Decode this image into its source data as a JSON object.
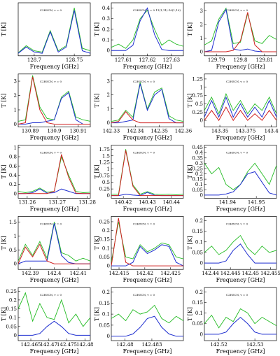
{
  "chart_data": [
    {
      "type": "line",
      "xlabel": "Frequency [GHz]",
      "ylabel": "T [K]",
      "annotation": "C2H5CN, v = 0",
      "xlim": [
        128.68,
        128.77
      ],
      "xticks": [
        128.7,
        128.75
      ],
      "ylim": [
        -0.1,
        2.0
      ],
      "x": [
        128.68,
        128.69,
        128.7,
        128.71,
        128.72,
        128.73,
        128.74,
        128.75,
        128.76,
        128.77
      ],
      "series": [
        {
          "color": "#22bb22",
          "values": [
            0.02,
            0.3,
            0.1,
            0.05,
            0.9,
            0.1,
            0.3,
            1.8,
            0.2,
            0.1
          ]
        },
        {
          "color": "#1f2fd0",
          "values": [
            0,
            0.25,
            0.05,
            0,
            0.85,
            0.05,
            0.25,
            1.7,
            0.1,
            0
          ]
        }
      ]
    },
    {
      "type": "line",
      "xlabel": "Frequency [GHz]",
      "ylabel": "T [K]",
      "annotation": "C2H5CN, v = 0 11(1,11)-10(1,10)",
      "xlim": [
        127.605,
        127.635
      ],
      "xticks": [
        127.61,
        127.62,
        127.63
      ],
      "ylim": [
        -0.05,
        0.45
      ],
      "yticks": [
        0,
        0.1,
        0.2,
        0.3,
        0.4
      ],
      "x": [
        127.605,
        127.608,
        127.611,
        127.614,
        127.617,
        127.62,
        127.623,
        127.626,
        127.629,
        127.632,
        127.635
      ],
      "series": [
        {
          "color": "#22bb22",
          "values": [
            0.03,
            0.06,
            0.02,
            0.1,
            0.3,
            0.38,
            0.2,
            0.05,
            0.1,
            0.06,
            0.04
          ]
        },
        {
          "color": "#1f2fd0",
          "values": [
            0,
            0,
            0,
            0.05,
            0.28,
            0.4,
            0.15,
            0.01,
            0,
            0,
            0
          ]
        }
      ]
    },
    {
      "type": "line",
      "xlabel": "Frequency [GHz]",
      "ylabel": "T [K]",
      "annotation": "C2H5CN, v = 0",
      "xlim": [
        129.785,
        129.815
      ],
      "xticks": [
        129.79,
        129.8,
        129.81
      ],
      "ylim": [
        -0.3,
        3.6
      ],
      "yticks": [
        0,
        1,
        2,
        3
      ],
      "x": [
        129.785,
        129.788,
        129.791,
        129.794,
        129.797,
        129.8,
        129.803,
        129.806,
        129.809,
        129.812,
        129.815
      ],
      "series": [
        {
          "color": "#22bb22",
          "values": [
            0.5,
            0.8,
            2.4,
            3.2,
            0.6,
            0.7,
            2.8,
            0.8,
            0.6,
            1.2,
            0.9
          ]
        },
        {
          "color": "#1f2fd0",
          "values": [
            0,
            0.1,
            2.2,
            3.1,
            0.2,
            0.1,
            0.2,
            0.05,
            0,
            0,
            0
          ]
        },
        {
          "color": "#d02020",
          "values": [
            0,
            0,
            0,
            0,
            0.1,
            0.8,
            2.9,
            0.5,
            0,
            0,
            0
          ]
        }
      ]
    },
    {
      "type": "line",
      "xlabel": "Frequency [GHz]",
      "ylabel": "T [K]",
      "annotation": "C2H5CN, v = 0",
      "xlim": [
        130.885,
        130.915
      ],
      "xticks": [
        130.89,
        130.9,
        130.91
      ],
      "ylim": [
        -0.2,
        3.5
      ],
      "yticks": [
        0,
        1,
        2,
        3
      ],
      "x": [
        130.885,
        130.888,
        130.891,
        130.894,
        130.897,
        130.9,
        130.903,
        130.906,
        130.909,
        130.912,
        130.915
      ],
      "series": [
        {
          "color": "#22bb22",
          "values": [
            0.2,
            0.3,
            3.4,
            1.2,
            0.4,
            0.3,
            1.9,
            2.3,
            0.5,
            0.3,
            0.2
          ]
        },
        {
          "color": "#1f2fd0",
          "values": [
            0,
            0,
            0.1,
            0.1,
            0.2,
            0.3,
            1.8,
            2.2,
            0.3,
            0,
            0
          ]
        },
        {
          "color": "#d02020",
          "values": [
            0,
            0.1,
            3.3,
            1.0,
            0.1,
            0,
            0,
            0,
            0,
            0,
            0
          ]
        }
      ]
    },
    {
      "type": "line",
      "xlabel": "Frequency [GHz]",
      "ylabel": "T [K]",
      "annotation": "C2H5CN, v = 0",
      "xlim": [
        142.33,
        142.36
      ],
      "xticks": [
        142.33,
        142.34,
        142.35,
        142.36
      ],
      "ylim": [
        -0.3,
        3.5
      ],
      "yticks": [
        0,
        1,
        2,
        3
      ],
      "x": [
        142.33,
        142.333,
        142.336,
        142.339,
        142.342,
        142.345,
        142.348,
        142.351,
        142.354,
        142.357,
        142.36
      ],
      "series": [
        {
          "color": "#22bb22",
          "values": [
            0.1,
            0.2,
            0.9,
            0.4,
            2.9,
            1.0,
            2.2,
            2.5,
            0.5,
            0.2,
            0.1
          ]
        },
        {
          "color": "#1f2fd0",
          "values": [
            0,
            0,
            0.1,
            0.2,
            2.8,
            0.9,
            2.0,
            2.4,
            0.3,
            0,
            0
          ]
        },
        {
          "color": "#d02020",
          "values": [
            0,
            0.1,
            0.8,
            0.2,
            0,
            0,
            0,
            0,
            0,
            0,
            0
          ]
        }
      ]
    },
    {
      "type": "line",
      "xlabel": "Frequency [GHz]",
      "ylabel": "T [K]",
      "annotation": "C2H5CN, v = 0",
      "xlim": [
        143.335,
        143.405
      ],
      "xticks": [
        143.35,
        143.375,
        143.4
      ],
      "ylim": [
        -0.2,
        1.4
      ],
      "yticks": [
        0,
        0.25,
        0.5,
        0.75,
        1,
        1.25
      ],
      "x": [
        143.335,
        143.342,
        143.349,
        143.356,
        143.363,
        143.37,
        143.377,
        143.384,
        143.391,
        143.398,
        143.405
      ],
      "series": [
        {
          "color": "#22bb22",
          "values": [
            0.3,
            0.7,
            0.2,
            0.8,
            0.3,
            0.6,
            0.2,
            0.5,
            0.3,
            0.7,
            0.2
          ]
        },
        {
          "color": "#1f2fd0",
          "values": [
            0.1,
            0.6,
            0.1,
            0.7,
            0.1,
            0.5,
            0.1,
            0.4,
            0.1,
            0.6,
            0.1
          ]
        },
        {
          "color": "#d02020",
          "values": [
            0,
            0.3,
            0,
            0.4,
            0,
            0.3,
            0,
            0.2,
            0,
            0.3,
            0
          ]
        }
      ]
    },
    {
      "type": "line",
      "xlabel": "Frequency [GHz]",
      "ylabel": "T [K]",
      "annotation": "C2H5CN, v = 0",
      "xlim": [
        131.257,
        131.281
      ],
      "xticks": [
        131.26,
        131.27,
        131.28
      ],
      "ylim": [
        -0.1,
        1.05
      ],
      "yticks": [
        0,
        0.2,
        0.4,
        0.6,
        0.8,
        1
      ],
      "x": [
        131.257,
        131.2594,
        131.2618,
        131.2642,
        131.2666,
        131.269,
        131.2714,
        131.2738,
        131.2762,
        131.2786,
        131.281
      ],
      "series": [
        {
          "color": "#22bb22",
          "values": [
            0.05,
            0.02,
            0.05,
            0.12,
            0.03,
            0.05,
            0.8,
            0.4,
            0.05,
            0.02,
            0.03
          ]
        },
        {
          "color": "#1f2fd0",
          "values": [
            0,
            0,
            0.02,
            0.1,
            0.01,
            0.02,
            0.1,
            0.05,
            0,
            0,
            0
          ]
        },
        {
          "color": "#d02020",
          "values": [
            0,
            0,
            0,
            0,
            0,
            0.05,
            0.85,
            0.35,
            0.01,
            0,
            0
          ]
        }
      ]
    },
    {
      "type": "line",
      "xlabel": "Frequency [GHz]",
      "ylabel": "T [K]",
      "annotation": "C2H5CN, v = 0",
      "xlim": [
        140.415,
        140.445
      ],
      "xticks": [
        140.42,
        140.43,
        140.44
      ],
      "ylim": [
        -0.1,
        1.9
      ],
      "yticks": [
        0,
        0.25,
        0.5,
        0.75,
        1,
        1.25,
        1.5,
        1.75
      ],
      "x": [
        140.415,
        140.418,
        140.421,
        140.424,
        140.427,
        140.43,
        140.433,
        140.436,
        140.439,
        140.442,
        140.445
      ],
      "series": [
        {
          "color": "#22bb22",
          "values": [
            0.05,
            0.05,
            1.75,
            0.4,
            0.05,
            0.15,
            0.05,
            0.04,
            0.05,
            0.03,
            0.05
          ]
        },
        {
          "color": "#1f2fd0",
          "values": [
            0,
            0,
            0.05,
            0.02,
            0,
            0.12,
            0.01,
            0,
            0,
            0,
            0
          ]
        },
        {
          "color": "#d02020",
          "values": [
            0,
            0,
            1.7,
            0.35,
            0,
            0,
            0,
            0,
            0,
            0,
            0
          ]
        }
      ]
    },
    {
      "type": "line",
      "xlabel": "Frequency [GHz]",
      "ylabel": "T [K]",
      "annotation": "C2H5CN, v = 0",
      "xlim": [
        141.932,
        141.957
      ],
      "xticks": [
        141.94,
        141.95
      ],
      "ylim": [
        -0.03,
        0.47
      ],
      "yticks": [
        0,
        0.05,
        0.1,
        0.15,
        0.2,
        0.25,
        0.3,
        0.35,
        0.4,
        0.45
      ],
      "x": [
        141.932,
        141.9345,
        141.937,
        141.9395,
        141.942,
        141.9445,
        141.947,
        141.9495,
        141.952,
        141.9545,
        141.957
      ],
      "series": [
        {
          "color": "#22bb22",
          "values": [
            0.3,
            0.2,
            0.26,
            0.1,
            0.05,
            0.1,
            0.22,
            0.3,
            0.2,
            0.1,
            0.28
          ]
        },
        {
          "color": "#1f2fd0",
          "values": [
            0,
            0,
            0,
            0.01,
            0.03,
            0.1,
            0.2,
            0.22,
            0.12,
            0.02,
            0
          ]
        }
      ]
    },
    {
      "type": "line",
      "xlabel": "Frequency [GHz]",
      "ylabel": "T [K]",
      "annotation": "C2H5CN, v = 0",
      "xlim": [
        142.385,
        142.415
      ],
      "xticks": [
        142.39,
        142.4,
        142.41
      ],
      "ylim": [
        -0.2,
        1.7
      ],
      "yticks": [
        0,
        0.5,
        1,
        1.5
      ],
      "x": [
        142.385,
        142.388,
        142.391,
        142.394,
        142.397,
        142.4,
        142.403,
        142.406,
        142.409,
        142.412,
        142.415
      ],
      "series": [
        {
          "color": "#22bb22",
          "values": [
            0.1,
            0.7,
            0.3,
            0.8,
            0.2,
            1.5,
            0.4,
            0.3,
            0.1,
            0.2,
            0.1
          ]
        },
        {
          "color": "#1f2fd0",
          "values": [
            0,
            0.1,
            0.1,
            0.1,
            0.1,
            1.45,
            0.3,
            0.05,
            0,
            0,
            0
          ]
        },
        {
          "color": "#d02020",
          "values": [
            0,
            0.6,
            0.25,
            0.7,
            0.1,
            0,
            0,
            0,
            0,
            0,
            0
          ]
        }
      ]
    },
    {
      "type": "line",
      "xlabel": "Frequency [GHz]",
      "ylabel": "T [K]",
      "annotation": "C2H5CN, v = 0",
      "xlim": [
        142.4135,
        142.4275
      ],
      "xticks": [
        142.415,
        142.42,
        142.425
      ],
      "ylim": [
        -0.02,
        0.28
      ],
      "yticks": [
        0,
        0.05,
        0.1,
        0.15,
        0.2,
        0.25
      ],
      "x": [
        142.4135,
        142.4149,
        142.4163,
        142.4177,
        142.4191,
        142.4205,
        142.4219,
        142.4233,
        142.4247,
        142.4261,
        142.4275
      ],
      "series": [
        {
          "color": "#22bb22",
          "values": [
            0.02,
            0.25,
            0.05,
            0.04,
            0.12,
            0.08,
            0.1,
            0.13,
            0.12,
            0.05,
            0.04
          ]
        },
        {
          "color": "#1f2fd0",
          "values": [
            0,
            0,
            0,
            0.02,
            0.11,
            0.07,
            0.09,
            0.12,
            0.11,
            0.02,
            0
          ]
        },
        {
          "color": "#d02020",
          "values": [
            0,
            0.27,
            0.02,
            0,
            0,
            0,
            0,
            0,
            0,
            0,
            0
          ]
        }
      ]
    },
    {
      "type": "line",
      "xlabel": "Frequency [GHz]",
      "ylabel": "T [K]",
      "annotation": "C2H5CN, v = 0",
      "xlim": [
        142.4385,
        142.4565
      ],
      "xticks": [
        142.44,
        142.445,
        142.45,
        142.455
      ],
      "ylim": [
        -0.03,
        0.22
      ],
      "yticks": [
        0,
        0.05,
        0.1,
        0.15,
        0.2
      ],
      "x": [
        142.4385,
        142.4403,
        142.4421,
        142.4439,
        142.4457,
        142.4475,
        142.4493,
        142.4511,
        142.4529,
        142.4547,
        142.4565
      ],
      "series": [
        {
          "color": "#22bb22",
          "values": [
            0.05,
            0.08,
            0.04,
            0.06,
            0.1,
            0.13,
            0.07,
            0.04,
            0.08,
            0.05,
            0.06
          ]
        },
        {
          "color": "#1f2fd0",
          "values": [
            0,
            0,
            0,
            0.01,
            0.06,
            0.09,
            0.04,
            0,
            0,
            0,
            0
          ]
        }
      ]
    },
    {
      "type": "line",
      "xlabel": "Frequency [GHz]",
      "ylabel": "T [K]",
      "annotation": "C2H5CN, v = 0",
      "xlim": [
        142.4615,
        142.4815
      ],
      "xticks": [
        142.465,
        142.47,
        142.475,
        142.48
      ],
      "ylim": [
        -0.03,
        0.27
      ],
      "yticks": [
        0,
        0.05,
        0.1,
        0.15,
        0.2,
        0.25
      ],
      "x": [
        142.4615,
        142.4635,
        142.4655,
        142.4675,
        142.4695,
        142.4715,
        142.4735,
        142.4755,
        142.4775,
        142.4795,
        142.4815
      ],
      "series": [
        {
          "color": "#22bb22",
          "values": [
            0.15,
            0.24,
            0.08,
            0.18,
            0.1,
            0.09,
            0.2,
            0.07,
            0.12,
            0.05,
            0.1
          ]
        },
        {
          "color": "#1f2fd0",
          "values": [
            0,
            0,
            0,
            0.01,
            0.05,
            0.08,
            0.05,
            0.01,
            0,
            0,
            0
          ]
        }
      ]
    },
    {
      "type": "line",
      "xlabel": "Frequency [GHz]",
      "ylabel": "T [K]",
      "annotation": "C2H5CN, v = 0",
      "xlim": [
        142.4785,
        142.4865
      ],
      "xticks": [
        142.48,
        142.483
      ],
      "ylim": [
        -0.02,
        0.22
      ],
      "yticks": [
        0,
        0.05,
        0.1,
        0.15,
        0.2
      ],
      "x": [
        142.4785,
        142.4793,
        142.4801,
        142.4809,
        142.4817,
        142.4825,
        142.4833,
        142.4841,
        142.4849,
        142.4857,
        142.4865
      ],
      "series": [
        {
          "color": "#22bb22",
          "values": [
            0.08,
            0.1,
            0.07,
            0.12,
            0.1,
            0.11,
            0.14,
            0.08,
            0.06,
            0.09,
            0.07
          ]
        },
        {
          "color": "#1f2fd0",
          "values": [
            0,
            0,
            0,
            0.01,
            0.04,
            0.08,
            0.09,
            0.04,
            0.01,
            0,
            0
          ]
        }
      ]
    },
    {
      "type": "line",
      "xlabel": "Frequency [GHz]",
      "ylabel": "T [K]",
      "annotation": "C2H5CN, v = 0",
      "xlim": [
        142.516,
        142.536
      ],
      "xticks": [
        142.52,
        142.53
      ],
      "ylim": [
        -0.03,
        0.22
      ],
      "yticks": [
        0,
        0.05,
        0.1,
        0.15,
        0.2
      ],
      "x": [
        142.516,
        142.518,
        142.52,
        142.522,
        142.524,
        142.526,
        142.528,
        142.53,
        142.532,
        142.534,
        142.536
      ],
      "series": [
        {
          "color": "#22bb22",
          "values": [
            0.05,
            0.09,
            0.03,
            0.08,
            0.06,
            0.12,
            0.1,
            0.05,
            0.08,
            0.06,
            0.04
          ]
        },
        {
          "color": "#1f2fd0",
          "values": [
            0,
            0,
            0,
            0.01,
            0.05,
            0.08,
            0.05,
            0.01,
            0,
            0,
            0
          ]
        }
      ]
    }
  ]
}
